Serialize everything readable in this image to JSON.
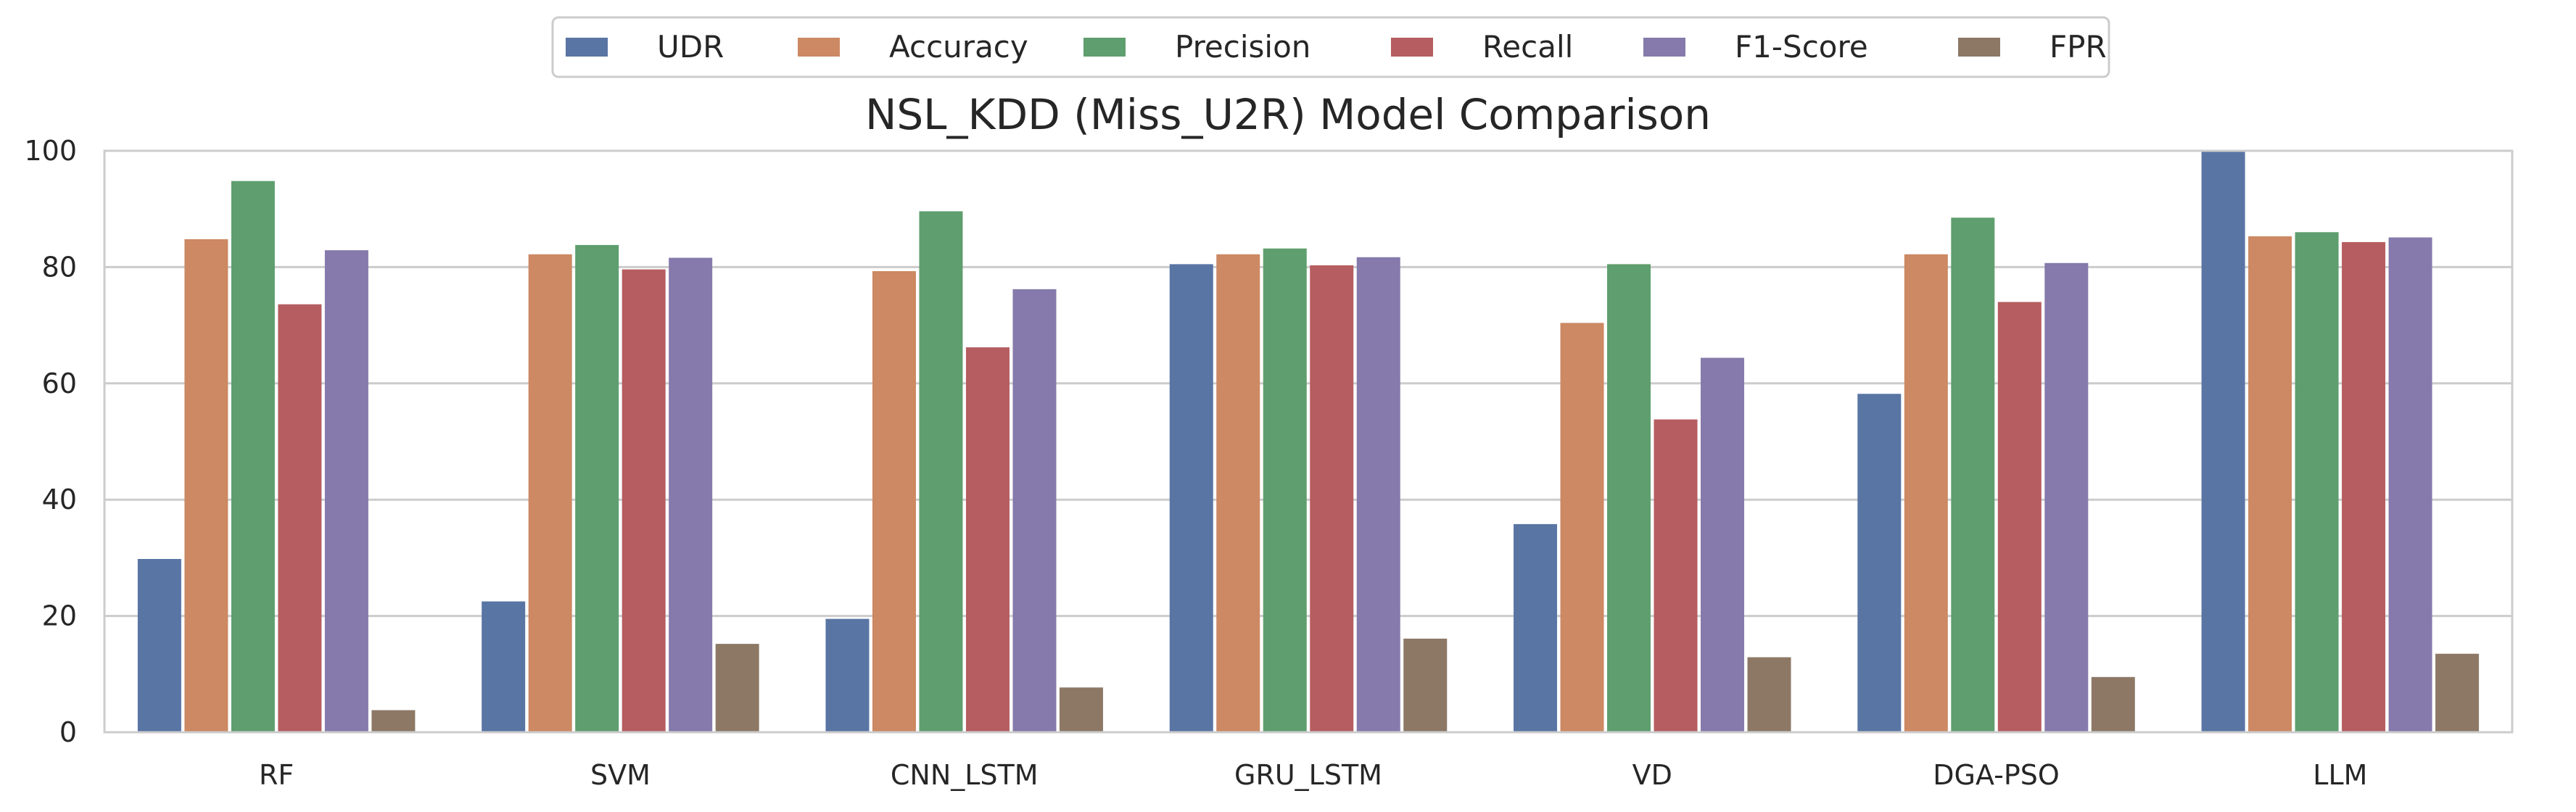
{
  "chart_data": {
    "type": "bar",
    "title": "NSL_KDD (Miss_U2R) Model Comparison",
    "xlabel": "",
    "ylabel": "",
    "ylim": [
      0,
      100
    ],
    "yticks": [
      "0",
      "20",
      "40",
      "60",
      "80",
      "100"
    ],
    "grid": "y",
    "legend_position": "top-center",
    "categories": [
      "RF",
      "SVM",
      "CNN_LSTM",
      "GRU_LSTM",
      "VD",
      "DGA-PSO",
      "LLM"
    ],
    "series": [
      {
        "name": "UDR",
        "color": "#5975a4",
        "values": [
          29.8,
          22.5,
          19.5,
          80.5,
          35.8,
          58.2,
          100.0
        ]
      },
      {
        "name": "Accuracy",
        "color": "#cc8963",
        "values": [
          84.8,
          82.2,
          79.3,
          82.2,
          70.4,
          82.2,
          85.3
        ]
      },
      {
        "name": "Precision",
        "color": "#5f9e6e",
        "values": [
          94.8,
          83.8,
          89.6,
          83.2,
          80.5,
          88.5,
          86.0
        ]
      },
      {
        "name": "Recall",
        "color": "#b55d60",
        "values": [
          73.6,
          79.6,
          66.2,
          80.3,
          53.8,
          74.0,
          84.3
        ]
      },
      {
        "name": "F1-Score",
        "color": "#857aab",
        "values": [
          82.9,
          81.6,
          76.2,
          81.7,
          64.4,
          80.7,
          85.1
        ]
      },
      {
        "name": "FPR",
        "color": "#8d7866",
        "values": [
          3.8,
          15.2,
          7.7,
          16.1,
          12.9,
          9.5,
          13.5
        ]
      }
    ]
  }
}
